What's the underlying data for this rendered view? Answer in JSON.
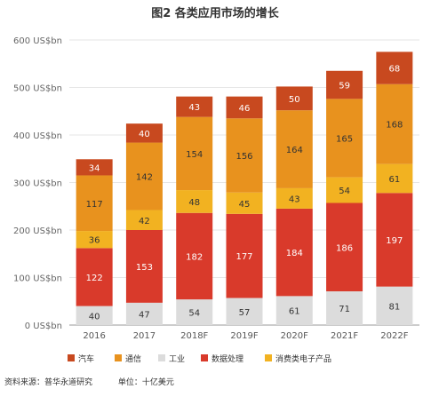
{
  "chart_data": {
    "type": "bar",
    "stacked": true,
    "title": "图2 各类应用市场的增长",
    "categories": [
      "2016",
      "2017",
      "2018F",
      "2019F",
      "2020F",
      "2021F",
      "2022F"
    ],
    "y_ticks": [
      "0 US$bn",
      "100 US$bn",
      "200 US$bn",
      "300 US$bn",
      "400 US$bn",
      "500 US$bn",
      "600 US$bn"
    ],
    "ylim": [
      0,
      600
    ],
    "grid": true,
    "legend_position": "bottom",
    "series": [
      {
        "name": "工业",
        "color": "#dcdcdc",
        "label_color": "#333333",
        "values": [
          40,
          47,
          54,
          57,
          61,
          71,
          81
        ]
      },
      {
        "name": "数据处理",
        "color": "#d93a2b",
        "label_color": "#ffffff",
        "values": [
          122,
          153,
          182,
          177,
          184,
          186,
          197
        ]
      },
      {
        "name": "消费类电子产品",
        "color": "#f2b221",
        "label_color": "#333333",
        "values": [
          36,
          42,
          48,
          45,
          43,
          54,
          61
        ]
      },
      {
        "name": "通信",
        "color": "#e8921e",
        "label_color": "#333333",
        "values": [
          117,
          142,
          154,
          156,
          164,
          165,
          168
        ]
      },
      {
        "name": "汽车",
        "color": "#c8491f",
        "label_color": "#ffffff",
        "values": [
          34,
          40,
          43,
          46,
          50,
          59,
          68
        ]
      }
    ],
    "legend_order": [
      "汽车",
      "通信",
      "工业",
      "数据处理",
      "消费类电子产品"
    ]
  },
  "footer": {
    "source": "资料来源：普华永道研究",
    "unit": "单位：十亿美元"
  }
}
